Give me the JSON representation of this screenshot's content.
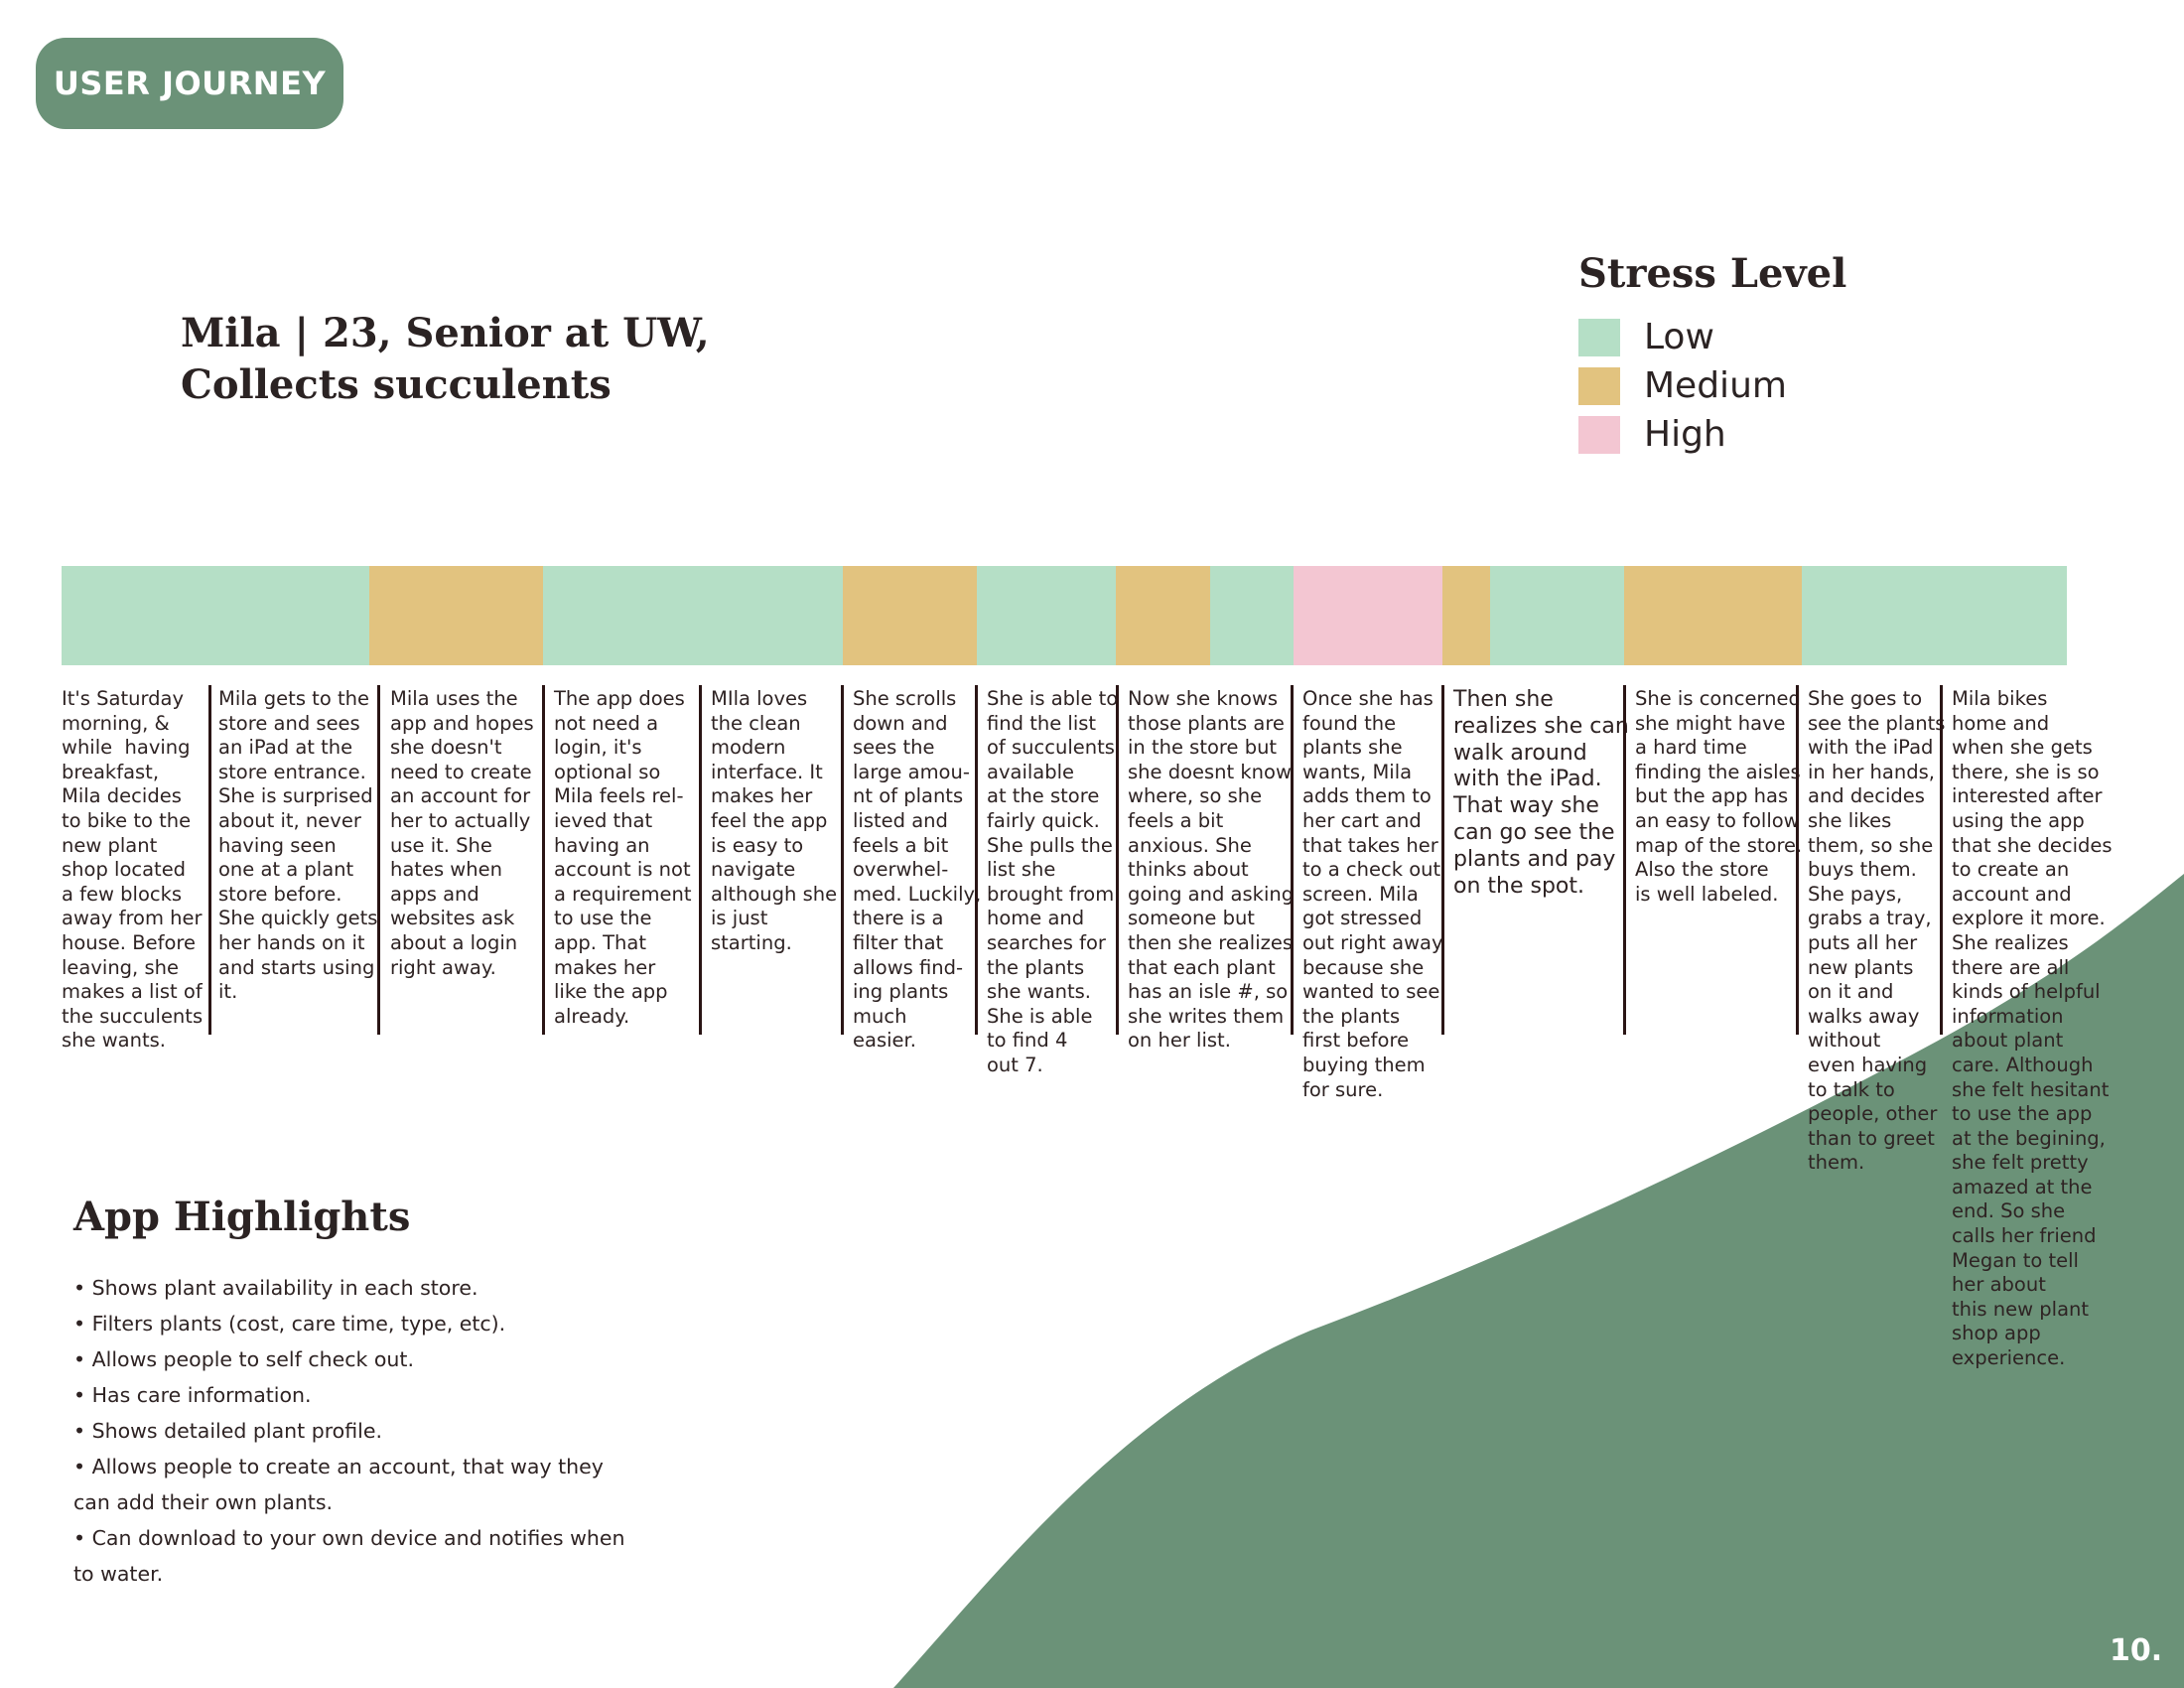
{
  "badge": {
    "label": "USER JOURNEY"
  },
  "persona": {
    "line1": "Mila | 23, Senior at UW,",
    "line2": "Collects succulents"
  },
  "legend": {
    "title": "Stress Level",
    "items": [
      {
        "label": "Low",
        "color": "#b5dfc6"
      },
      {
        "label": "Medium",
        "color": "#e2c37f"
      },
      {
        "label": "High",
        "color": "#f3c6d2"
      }
    ]
  },
  "colors": {
    "brand_green": "#6b9278",
    "low": "#b5dfc6",
    "medium": "#e2c37f",
    "high": "#f3c6d2"
  },
  "stress_bar": {
    "segments": [
      {
        "level": "Low",
        "share": 0.1535
      },
      {
        "level": "Medium",
        "share": 0.0866
      },
      {
        "level": "Low",
        "share": 0.1495
      },
      {
        "level": "Medium",
        "share": 0.0668
      },
      {
        "level": "Low",
        "share": 0.0694
      },
      {
        "level": "Medium",
        "share": 0.047
      },
      {
        "level": "Low",
        "share": 0.0416
      },
      {
        "level": "High",
        "share": 0.0743
      },
      {
        "level": "Medium",
        "share": 0.0238
      },
      {
        "level": "Low",
        "share": 0.0668
      },
      {
        "level": "Medium",
        "share": 0.0886
      },
      {
        "level": "Low",
        "share": 0.1321
      }
    ]
  },
  "journey_steps": [
    {
      "text": "It's Saturday\nmorning, &\nwhile  having\nbreakfast,\nMila decides\nto bike to the\nnew plant\nshop located\na few blocks\naway from her\nhouse. Before\nleaving, she\nmakes a list of\nthe succulents\nshe wants."
    },
    {
      "text": "Mila gets to the\nstore and sees\nan iPad at the\nstore entrance.\nShe is surprised\nabout it, never\nhaving seen\none at a plant\nstore before.\nShe quickly gets\nher hands on it\nand starts using\nit."
    },
    {
      "text": "Mila uses the\napp and hopes\nshe doesn't\nneed to create\nan account for\nher to actually\nuse it. She\nhates when\napps and\nwebsites ask\nabout a login\nright away."
    },
    {
      "text": "The app does\nnot need a\nlogin, it's\noptional so\nMila feels rel-\nieved that\nhaving an\naccount is not\na requirement\nto use the\napp. That\nmakes her\nlike the app\nalready."
    },
    {
      "text": "MIla loves\nthe clean\nmodern\ninterface. It\nmakes her\nfeel the app\nis easy to\nnavigate\nalthough she\nis just\nstarting."
    },
    {
      "text": "She scrolls\ndown and\nsees the\nlarge amou-\nnt of plants\nlisted and\nfeels a bit\noverwhel-\nmed. Luckily,\nthere is a\nfilter that\nallows find-\ning plants\nmuch\neasier."
    },
    {
      "text": "She is able to\nfind the list\nof succulents\navailable\nat the store\nfairly quick.\nShe pulls the\nlist she\nbrought from\nhome and\nsearches for\nthe plants\nshe wants.\nShe is able\nto find 4\nout 7."
    },
    {
      "text": "Now she knows\nthose plants are\nin the store but\nshe doesnt know\nwhere, so she\nfeels a bit\nanxious. She\nthinks about\ngoing and asking\nsomeone but\nthen she realizes\nthat each plant\nhas an isle #, so\nshe writes them\non her list."
    },
    {
      "text": "Once she has\nfound the\nplants she\nwants, Mila\nadds them to\nher cart and\nthat takes her\nto a check out\nscreen. Mila\ngot stressed\nout right away\nbecause she\nwanted to see\nthe plants\nfirst before\nbuying them\nfor sure."
    },
    {
      "text": "Then she\nrealizes she can\nwalk around\nwith the iPad.\nThat way she\ncan go see the\nplants and pay\non the spot."
    },
    {
      "text": "She is concerned\nshe might have\na hard time\nfinding the aisles\nbut the app has\nan easy to follow\nmap of the store.\nAlso the store\nis well labeled."
    },
    {
      "text": "She goes to\nsee the plants\nwith the iPad\nin her hands,\nand decides\nshe likes\nthem, so she\nbuys them.\nShe pays,\ngrabs a tray,\nputs all her\nnew plants\non it and\nwalks away\nwithout\neven having\nto talk to\npeople, other\nthan to greet\nthem."
    },
    {
      "text": "Mila bikes\nhome and\nwhen she gets\nthere, she is so\ninterested after\nusing the app\nthat she decides\nto create an\naccount and\nexplore it more.\nShe realizes\nthere are all\nkinds of helpful\ninformation\nabout plant\ncare. Although\nshe felt hesitant\nto use the app\nat the begining,\nshe felt pretty\namazed at the\nend. So she\ncalls her friend\nMegan to tell\nher about\nthis new plant\nshop app\nexperience."
    }
  ],
  "highlights": {
    "title": "App Highlights",
    "items": [
      "• Shows plant availability in each store.",
      "• Filters plants (cost, care time, type, etc).",
      "• Allows people to self check out.",
      "• Has care information.",
      "• Shows detailed plant profile.",
      "• Allows people to create an account, that way they\ncan add their own plants.",
      "• Can download to your own device and notifies when\nto water."
    ]
  },
  "page_number": "10."
}
